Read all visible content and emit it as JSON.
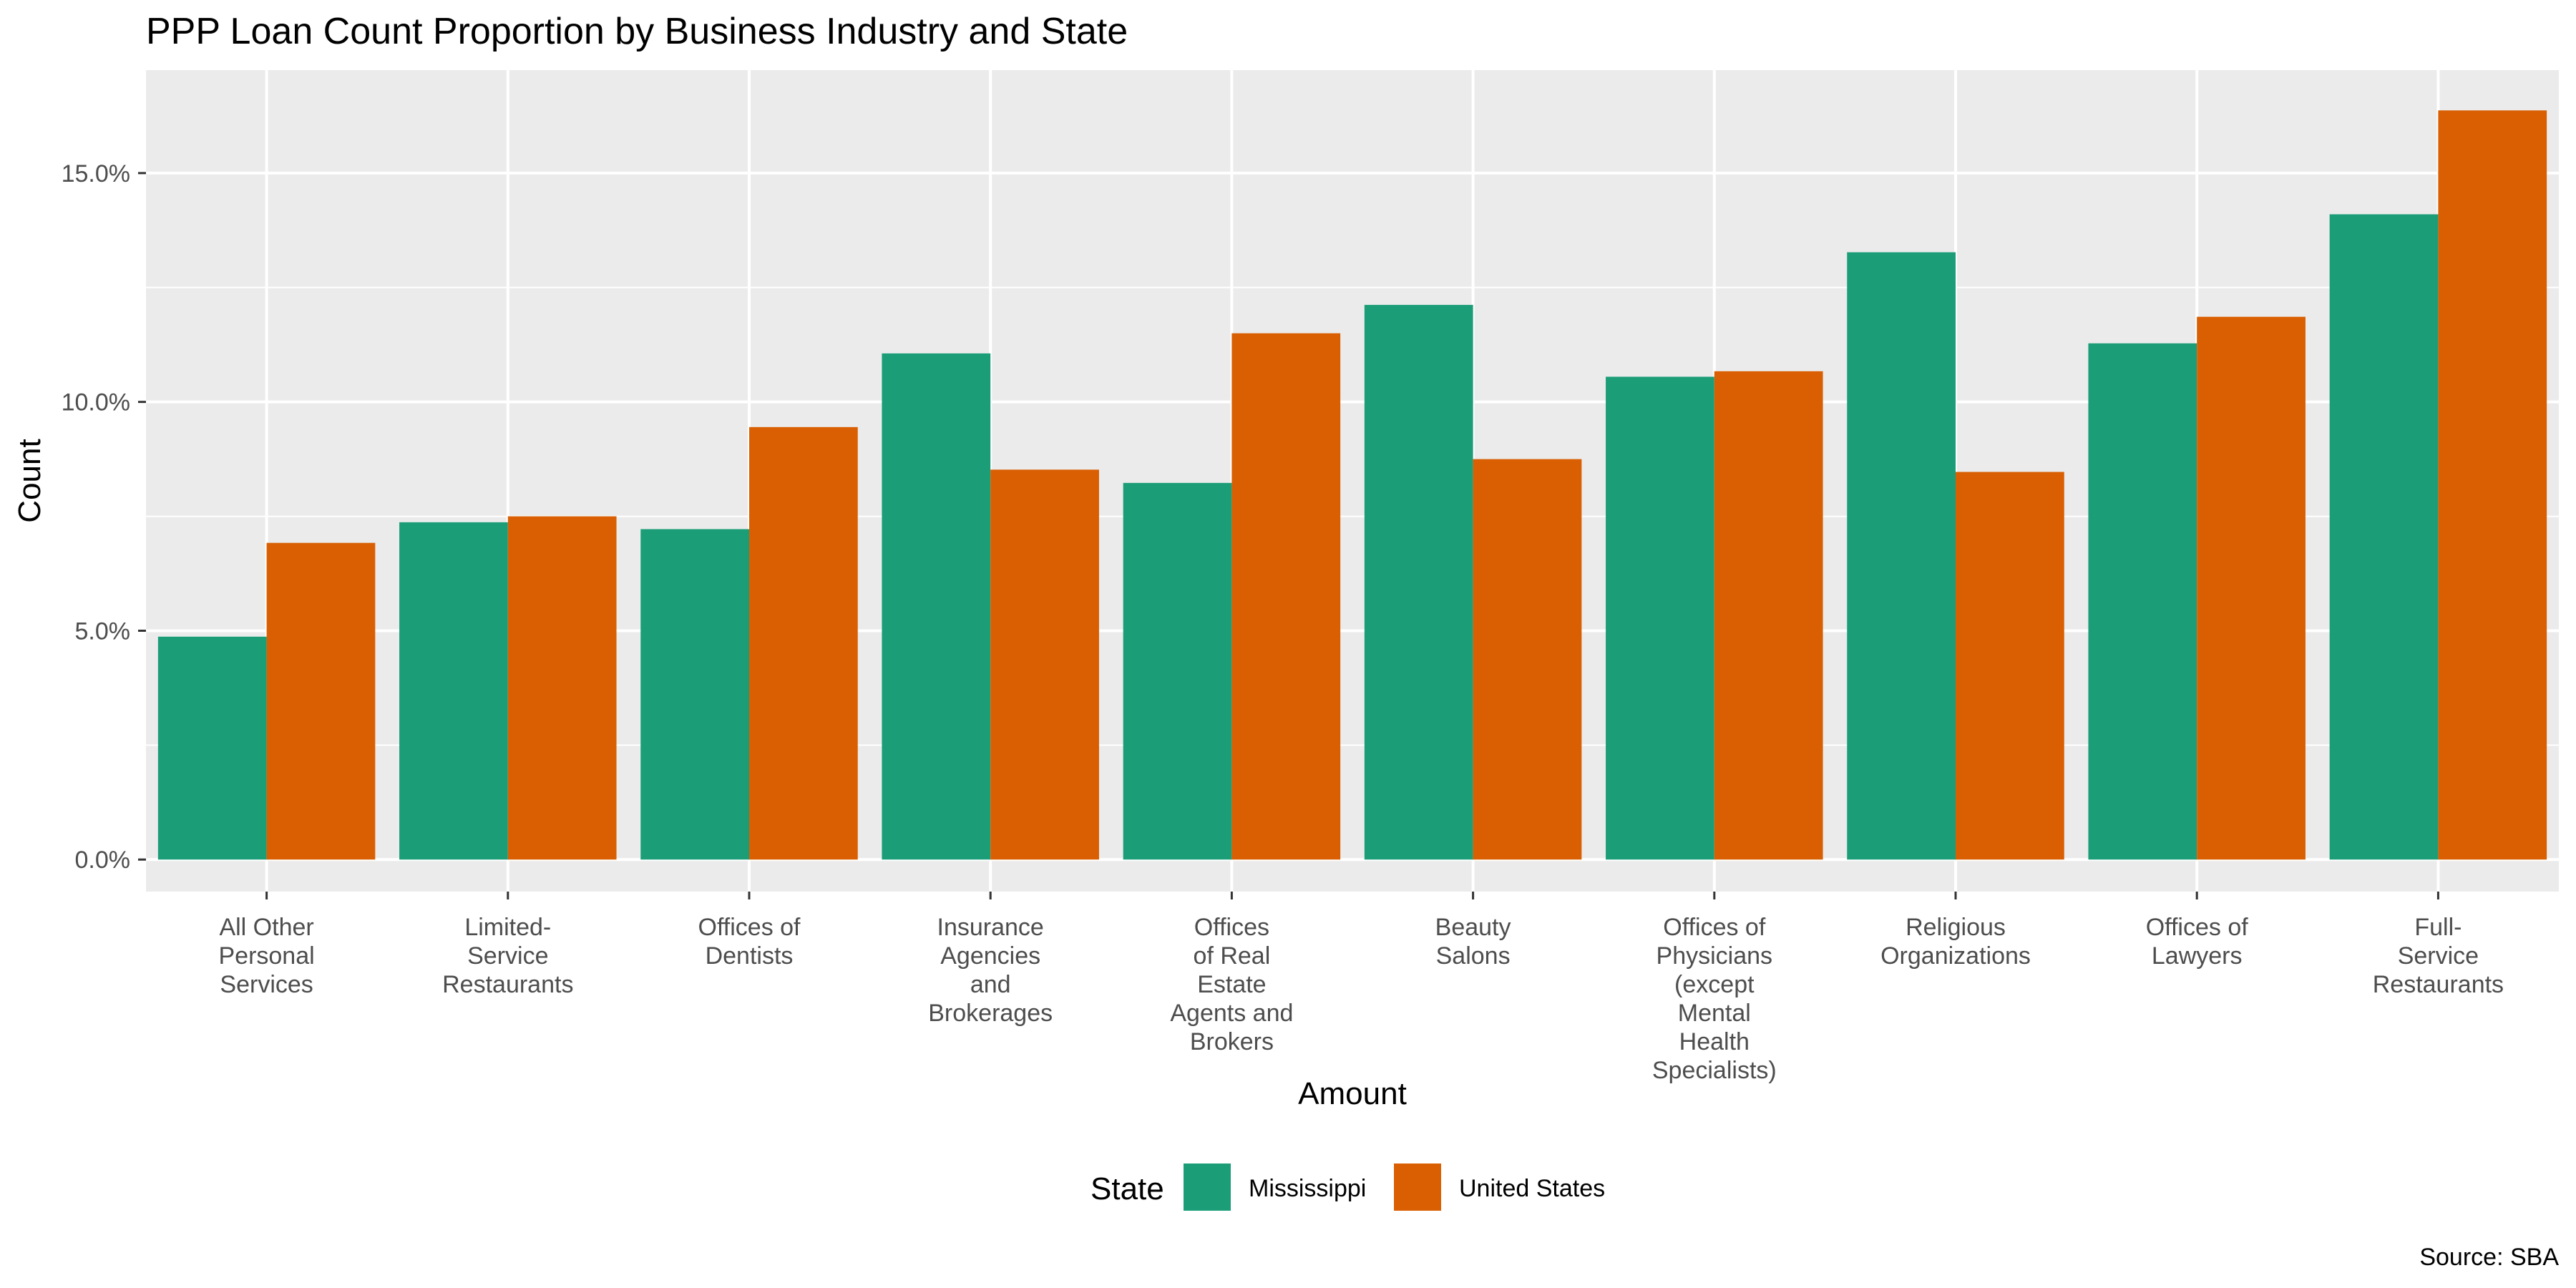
{
  "chart_data": {
    "type": "bar",
    "title": "PPP Loan Count Proportion by Business Industry and State",
    "xlabel": "Amount",
    "ylabel": "Count",
    "caption": "Source: SBA",
    "ylim": [
      -0.007,
      0.1725
    ],
    "yticks": [
      0,
      0.05,
      0.1,
      0.15
    ],
    "ytick_labels": [
      "0.0%",
      "5.0%",
      "10.0%",
      "15.0%"
    ],
    "grid": true,
    "legend": {
      "title": "State",
      "position": "bottom"
    },
    "categories": [
      [
        "All Other",
        "Personal",
        "Services"
      ],
      [
        "Limited-",
        "Service",
        "Restaurants"
      ],
      [
        "Offices of",
        "Dentists"
      ],
      [
        "Insurance",
        "Agencies",
        "and",
        "Brokerages"
      ],
      [
        "Offices",
        "of Real",
        "Estate",
        "Agents and",
        "Brokers"
      ],
      [
        "Beauty",
        "Salons"
      ],
      [
        "Offices of",
        "Physicians",
        "(except",
        "Mental",
        "Health",
        "Specialists)"
      ],
      [
        "Religious",
        "Organizations"
      ],
      [
        "Offices of",
        "Lawyers"
      ],
      [
        "Full-",
        "Service",
        "Restaurants"
      ]
    ],
    "series": [
      {
        "name": "Mississippi",
        "color": "#1b9e77",
        "values": [
          0.0487,
          0.0737,
          0.0722,
          0.1106,
          0.0823,
          0.1212,
          0.1055,
          0.1327,
          0.1128,
          0.141
        ]
      },
      {
        "name": "United States",
        "color": "#d95f02",
        "values": [
          0.0692,
          0.075,
          0.0945,
          0.0852,
          0.115,
          0.0875,
          0.1067,
          0.0847,
          0.1186,
          0.1637
        ]
      }
    ]
  }
}
